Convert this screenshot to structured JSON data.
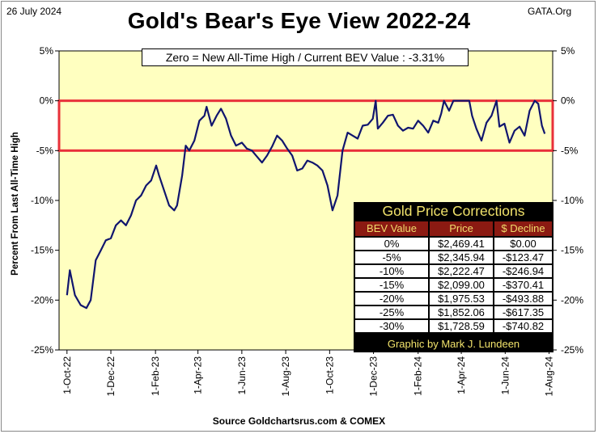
{
  "header": {
    "date": "26 July 2024",
    "brand": "GATA.Org",
    "title": "Gold's Bear's Eye View 2022-24"
  },
  "annotation": "Zero = New All-Time High / Current  BEV Value : -3.31%",
  "source": "Source Goldchartsrus.com  & COMEX",
  "colors": {
    "plot_bg": "#ffffc0",
    "line": "#10156e",
    "band": "#e8303a",
    "table_header": "#8b1a12",
    "table_title": "#f2e36b"
  },
  "corrections_table": {
    "title": "Gold Price Corrections",
    "headers": [
      "BEV Value",
      "Price",
      "$ Decline"
    ],
    "rows": [
      [
        "0%",
        "$2,469.41",
        "$0.00"
      ],
      [
        "-5%",
        "$2,345.94",
        "-$123.47"
      ],
      [
        "-10%",
        "$2,222.47",
        "-$246.94"
      ],
      [
        "-15%",
        "$2,099.00",
        "-$370.41"
      ],
      [
        "-20%",
        "$1,975.53",
        "-$493.88"
      ],
      [
        "-25%",
        "$1,852.06",
        "-$617.35"
      ],
      [
        "-30%",
        "$1,728.59",
        "-$740.82"
      ]
    ],
    "credit": "Graphic by Mark J. Lundeen"
  },
  "chart_data": {
    "type": "line",
    "title": "Gold's Bear's Eye View 2022-24",
    "xlabel": "",
    "ylabel": "Percent  From  Last  All-Time  High",
    "ylim": [
      -25,
      5
    ],
    "y_ticks": [
      "5%",
      "0%",
      "-5%",
      "-10%",
      "-15%",
      "-20%",
      "-25%"
    ],
    "y_tick_values": [
      5,
      0,
      -5,
      -10,
      -15,
      -20,
      -25
    ],
    "x_tick_labels": [
      "1-Oct-22",
      "1-Dec-22",
      "1-Feb-23",
      "1-Apr-23",
      "1-Jun-23",
      "1-Aug-23",
      "1-Oct-23",
      "1-Dec-23",
      "1-Feb-24",
      "1-Apr-24",
      "1-Jun-24",
      "1-Aug-24"
    ],
    "grid": false,
    "highlight_band": [
      -5,
      0
    ],
    "series": [
      {
        "x": [
          "2022-10-01",
          "2022-10-05",
          "2022-10-12",
          "2022-10-20",
          "2022-10-28",
          "2022-11-03",
          "2022-11-10",
          "2022-11-17",
          "2022-11-24",
          "2022-12-01",
          "2022-12-08",
          "2022-12-15",
          "2022-12-22",
          "2022-12-29",
          "2023-01-05",
          "2023-01-12",
          "2023-01-19",
          "2023-01-26",
          "2023-02-02",
          "2023-02-06",
          "2023-02-13",
          "2023-02-20",
          "2023-02-27",
          "2023-03-03",
          "2023-03-10",
          "2023-03-15",
          "2023-03-20",
          "2023-03-27",
          "2023-04-03",
          "2023-04-10",
          "2023-04-13",
          "2023-04-20",
          "2023-04-27",
          "2023-05-03",
          "2023-05-10",
          "2023-05-17",
          "2023-05-24",
          "2023-06-01",
          "2023-06-08",
          "2023-06-15",
          "2023-06-22",
          "2023-06-29",
          "2023-07-06",
          "2023-07-13",
          "2023-07-20",
          "2023-07-27",
          "2023-08-03",
          "2023-08-10",
          "2023-08-17",
          "2023-08-24",
          "2023-08-31",
          "2023-09-07",
          "2023-09-14",
          "2023-09-21",
          "2023-09-28",
          "2023-10-05",
          "2023-10-12",
          "2023-10-19",
          "2023-10-26",
          "2023-11-02",
          "2023-11-09",
          "2023-11-16",
          "2023-11-23",
          "2023-11-30",
          "2023-12-04",
          "2023-12-07",
          "2023-12-14",
          "2023-12-21",
          "2023-12-28",
          "2024-01-04",
          "2024-01-11",
          "2024-01-18",
          "2024-01-25",
          "2024-02-01",
          "2024-02-08",
          "2024-02-15",
          "2024-02-22",
          "2024-02-29",
          "2024-03-04",
          "2024-03-08",
          "2024-03-15",
          "2024-03-21",
          "2024-03-28",
          "2024-04-04",
          "2024-04-08",
          "2024-04-12",
          "2024-04-16",
          "2024-04-22",
          "2024-04-29",
          "2024-05-06",
          "2024-05-13",
          "2024-05-20",
          "2024-05-24",
          "2024-05-31",
          "2024-06-07",
          "2024-06-14",
          "2024-06-21",
          "2024-06-28",
          "2024-07-05",
          "2024-07-12",
          "2024-07-17",
          "2024-07-22",
          "2024-07-26"
        ],
        "values": [
          -19.5,
          -17.0,
          -19.5,
          -20.5,
          -20.8,
          -20.0,
          -16.0,
          -15.0,
          -14.0,
          -13.8,
          -12.5,
          -12.0,
          -12.5,
          -11.5,
          -10.0,
          -9.5,
          -8.5,
          -8.0,
          -6.5,
          -7.5,
          -9.0,
          -10.5,
          -11.0,
          -10.5,
          -7.5,
          -4.5,
          -5.0,
          -4.0,
          -2.0,
          -1.5,
          -0.6,
          -2.5,
          -1.5,
          -0.8,
          -1.8,
          -3.5,
          -4.5,
          -4.2,
          -4.8,
          -5.0,
          -5.6,
          -6.2,
          -5.5,
          -4.6,
          -3.5,
          -4.0,
          -4.8,
          -5.5,
          -7.0,
          -6.8,
          -6.0,
          -6.2,
          -6.5,
          -7.0,
          -8.5,
          -11.0,
          -9.5,
          -5.0,
          -3.2,
          -3.5,
          -3.8,
          -2.5,
          -2.4,
          -1.8,
          0.0,
          -2.8,
          -2.2,
          -1.5,
          -1.4,
          -2.5,
          -3.0,
          -2.7,
          -2.8,
          -2.0,
          -2.5,
          -3.2,
          -2.0,
          -2.2,
          -1.3,
          0.0,
          -1.0,
          0.0,
          0.0,
          0.0,
          0.0,
          0.0,
          -1.5,
          -2.8,
          -4.0,
          -2.2,
          -1.5,
          0.0,
          -2.6,
          -2.3,
          -4.2,
          -3.0,
          -2.6,
          -3.5,
          -1.0,
          0.0,
          -0.3,
          -2.5,
          -3.31
        ]
      }
    ]
  }
}
